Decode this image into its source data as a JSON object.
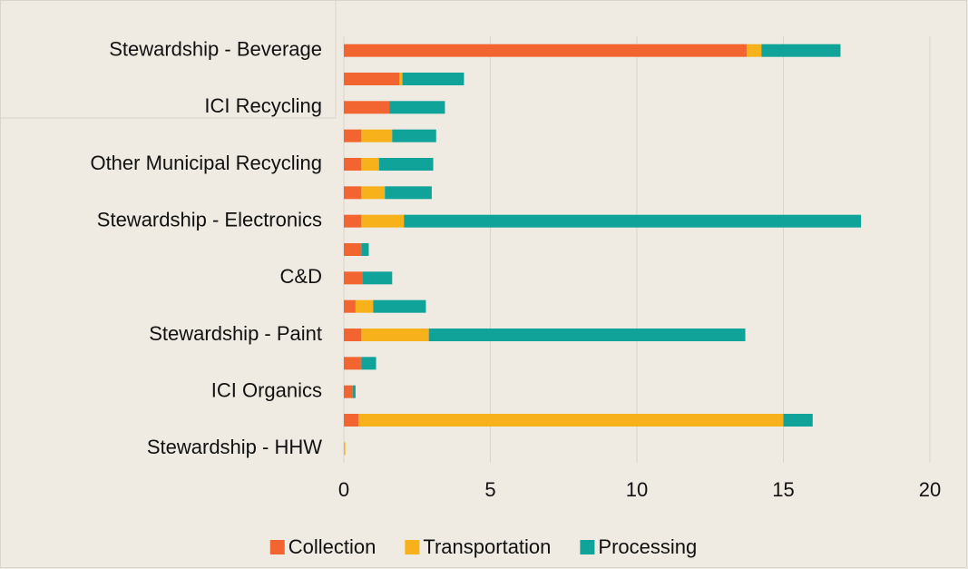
{
  "chart_data": {
    "type": "bar",
    "orientation": "horizontal",
    "stacked": true,
    "categories": [
      "Stewardship - Beverage",
      null,
      "ICI Recycling",
      null,
      "Other Municipal Recycling",
      null,
      "Stewardship - Electronics",
      null,
      "C&D",
      null,
      "Stewardship - Paint",
      null,
      "ICI Organics",
      null,
      "Stewardship - HHW"
    ],
    "series": [
      {
        "name": "Collection",
        "color": "#f26531",
        "values": [
          13.75,
          1.9,
          1.55,
          0.6,
          0.6,
          0.6,
          0.6,
          0.6,
          0.65,
          0.4,
          0.6,
          0.6,
          0.3,
          0.5,
          0
        ]
      },
      {
        "name": "Transportation",
        "color": "#f7b21b",
        "values": [
          0.5,
          0.1,
          0,
          1.05,
          0.6,
          0.8,
          1.45,
          0,
          0,
          0.6,
          2.3,
          0,
          0,
          14.5,
          0.05
        ]
      },
      {
        "name": "Processing",
        "color": "#0fa39a",
        "values": [
          2.7,
          2.1,
          1.9,
          1.5,
          1.85,
          1.6,
          15.6,
          0.25,
          1.0,
          1.8,
          10.8,
          0.5,
          0.1,
          1.0,
          0
        ]
      }
    ],
    "xlim": [
      0,
      20
    ],
    "xticks": [
      0,
      5,
      10,
      15,
      20
    ],
    "grid": true,
    "legend": "bottom"
  }
}
